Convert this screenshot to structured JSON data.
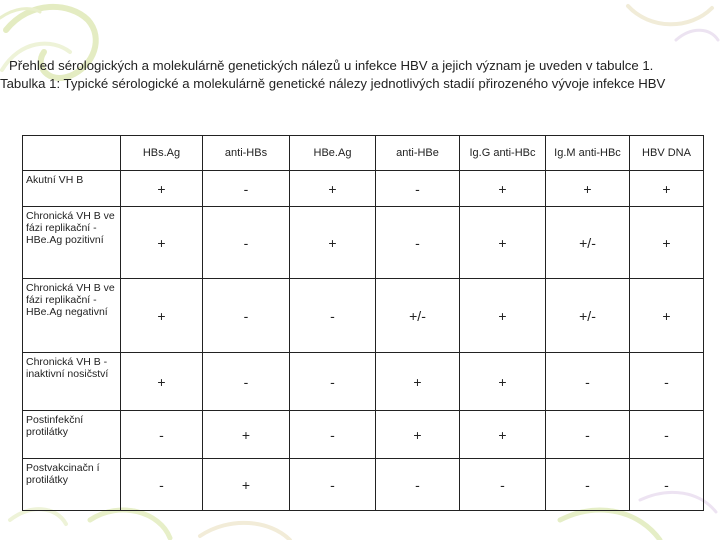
{
  "intro": {
    "line1": "Přehled sérologických a molekulárně genetických nálezů u infekce HBV a jejich význam je uveden v tabulce 1.",
    "line2": "Tabulka 1: Typické sérologické a molekulárně genetické nálezy jednotlivých stadií přirozeného vývoje infekce HBV"
  },
  "table": {
    "corner": "",
    "headers": [
      "HBs.Ag",
      "anti-HBs",
      "HBe.Ag",
      "anti-HBe",
      "Ig.G anti-HBc",
      "Ig.M anti-HBc",
      "HBV DNA"
    ],
    "rows": [
      {
        "label": "Akutní VH B",
        "values": [
          "+",
          "-",
          "+",
          "-",
          "+",
          "+",
          "+"
        ]
      },
      {
        "label": "Chronická VH B ve fázi replikační - HBe.Ag pozitivní",
        "values": [
          "+",
          "-",
          "+",
          "-",
          "+",
          "+/-",
          "+"
        ]
      },
      {
        "label": "Chronická VH B ve fázi replikační - HBe.Ag negativní",
        "values": [
          "+",
          "-",
          "-",
          "+/-",
          "+",
          "+/-",
          "+"
        ]
      },
      {
        "label": "Chronická VH B - inaktivní nosičství",
        "values": [
          "+",
          "-",
          "-",
          "+",
          "+",
          "-",
          "-"
        ]
      },
      {
        "label": "Postinfekční protilátky",
        "values": [
          "-",
          "+",
          "-",
          "+",
          "+",
          "-",
          "-"
        ]
      },
      {
        "label": "Postvakcinačn í protilátky",
        "values": [
          "-",
          "+",
          "-",
          "-",
          "-",
          "-",
          "-"
        ]
      }
    ]
  }
}
